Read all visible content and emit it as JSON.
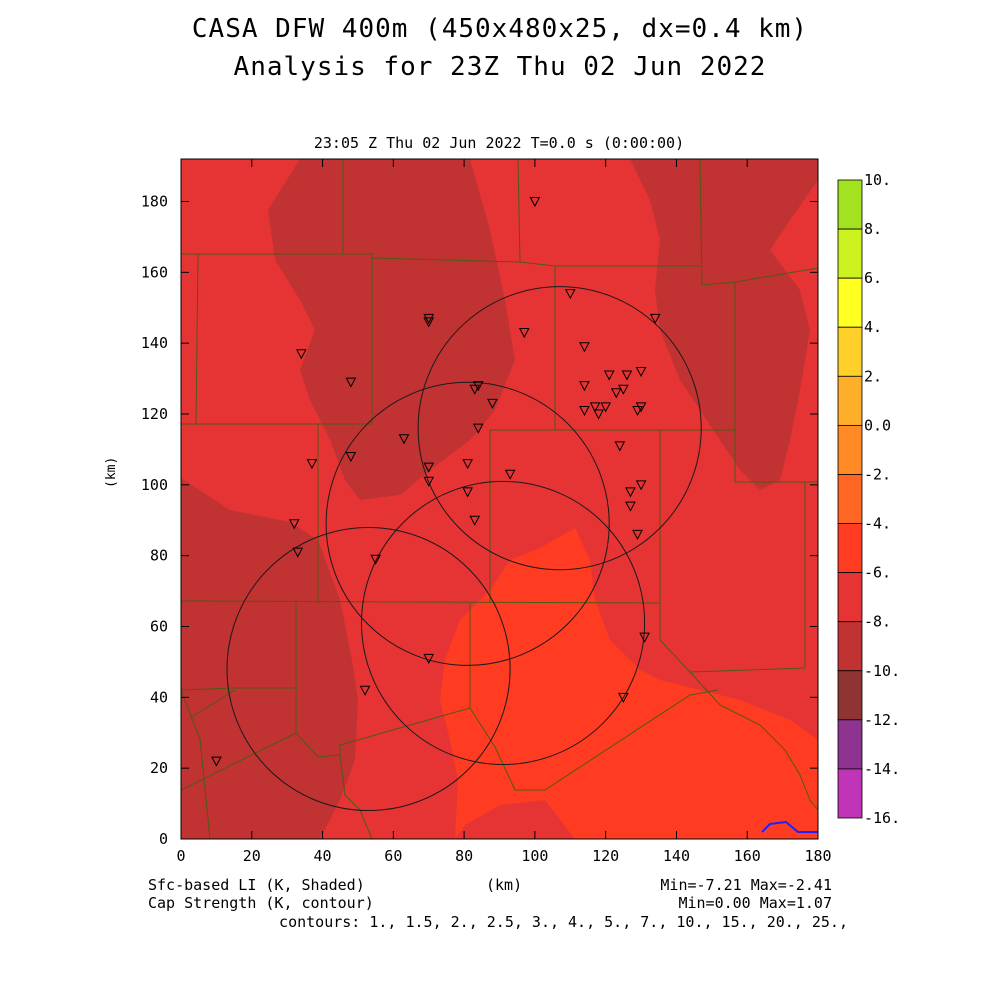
{
  "title_line1": "CASA DFW 400m (450x480x25, dx=0.4 km)",
  "title_line2": "Analysis for 23Z Thu 02 Jun 2022",
  "subtitle": "23:05 Z Thu 02 Jun 2022    T=0.0 s (0:00:00)",
  "y_axis_label": "(km)",
  "x_axis_label": "(km)",
  "x_ticks": [
    "0",
    "20",
    "40",
    "60",
    "80",
    "100",
    "120",
    "140",
    "160",
    "180"
  ],
  "y_ticks": [
    "0",
    "20",
    "40",
    "60",
    "80",
    "100",
    "120",
    "140",
    "160",
    "180"
  ],
  "footer": {
    "field1": "Sfc-based LI (K, Shaded)",
    "field2": "Cap Strength (K, contour)",
    "minmax1": "Min=-7.21 Max=-2.41",
    "minmax2": "Min=0.00 Max=1.07",
    "contours": "contours: 1., 1.5, 2., 2.5, 3., 4., 5., 7., 10., 15., 20., 25.,"
  },
  "colorbar": {
    "labels": [
      "10.",
      "8.",
      "6.",
      "4.",
      "2.",
      "0.0",
      "-2.",
      "-4.",
      "-6.",
      "-8.",
      "-10.",
      "-12.",
      "-14.",
      "-16."
    ],
    "colors": [
      "#a2e21e",
      "#ccf220",
      "#ffff22",
      "#ffd02a",
      "#ffae2a",
      "#ff8a26",
      "#ff6624",
      "#ff3c22",
      "#e63434",
      "#c13232",
      "#8f3333",
      "#8e3490",
      "#c034b8",
      "#dc44e2"
    ]
  },
  "map": {
    "fill_colors": {
      "lightest": "#ff3c22",
      "mid": "#e63434",
      "dark": "#c13232"
    },
    "county_line_color": "#4e5a14",
    "range_ring_color": "#1a1a1a",
    "water_color": "#2020ff",
    "radar_rings_km": [
      {
        "x": 107,
        "y": 116,
        "r": 40
      },
      {
        "x": 81,
        "y": 89,
        "r": 40
      },
      {
        "x": 91,
        "y": 61,
        "r": 40
      },
      {
        "x": 53,
        "y": 48,
        "r": 40
      }
    ],
    "stations_km": [
      [
        100,
        180
      ],
      [
        110,
        154
      ],
      [
        134,
        147
      ],
      [
        70,
        147
      ],
      [
        70,
        146
      ],
      [
        97,
        143
      ],
      [
        114,
        139
      ],
      [
        34,
        137
      ],
      [
        126,
        131
      ],
      [
        130,
        132
      ],
      [
        114,
        128
      ],
      [
        121,
        131
      ],
      [
        123,
        126
      ],
      [
        125,
        127
      ],
      [
        48,
        129
      ],
      [
        84,
        128
      ],
      [
        83,
        127
      ],
      [
        88,
        123
      ],
      [
        114,
        121
      ],
      [
        117,
        122
      ],
      [
        118,
        120
      ],
      [
        120,
        122
      ],
      [
        129,
        121
      ],
      [
        130,
        122
      ],
      [
        84,
        116
      ],
      [
        63,
        113
      ],
      [
        124,
        111
      ],
      [
        48,
        108
      ],
      [
        37,
        106
      ],
      [
        70,
        105
      ],
      [
        81,
        106
      ],
      [
        93,
        103
      ],
      [
        70,
        101
      ],
      [
        127,
        98
      ],
      [
        130,
        100
      ],
      [
        81,
        98
      ],
      [
        127,
        94
      ],
      [
        32,
        89
      ],
      [
        83,
        90
      ],
      [
        129,
        86
      ],
      [
        33,
        81
      ],
      [
        55,
        79
      ],
      [
        131,
        57
      ],
      [
        70,
        51
      ],
      [
        52,
        42
      ],
      [
        125,
        40
      ],
      [
        10,
        22
      ]
    ]
  }
}
